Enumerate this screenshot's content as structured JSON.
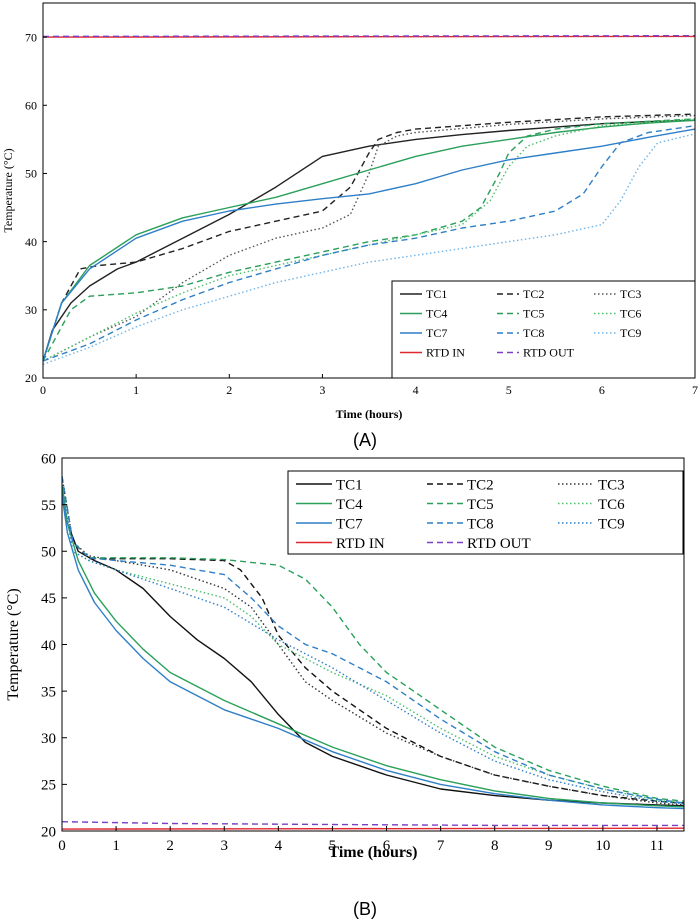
{
  "chart_data": [
    {
      "type": "line",
      "panel_label": "(A)",
      "xlabel": "Time (hours)",
      "ylabel": "Temperature (°C)",
      "xlim": [
        0,
        7
      ],
      "ylim": [
        20,
        75
      ],
      "xticks": [
        "0",
        "1",
        "2",
        "3",
        "4",
        "5",
        "6",
        "7"
      ],
      "yticks": [
        "20",
        "30",
        "40",
        "50",
        "60",
        "70"
      ],
      "xtick_values": [
        0,
        1,
        2,
        3,
        4,
        5,
        6,
        7
      ],
      "ytick_values": [
        20,
        30,
        40,
        50,
        60,
        70
      ],
      "legend_position": "bottom-right",
      "series": [
        {
          "name": "TC1",
          "color": "#222222",
          "dash": "solid",
          "x": [
            0,
            0.1,
            0.3,
            0.5,
            0.8,
            1.0,
            1.5,
            2.0,
            2.5,
            3.0,
            3.5,
            4.0,
            4.5,
            5.0,
            5.5,
            6.0,
            6.5,
            7.0
          ],
          "y": [
            22.5,
            27,
            31,
            33.5,
            36,
            37,
            40.5,
            44,
            48,
            52.5,
            54,
            55,
            55.7,
            56.3,
            56.8,
            57.3,
            57.6,
            57.8
          ]
        },
        {
          "name": "TC2",
          "color": "#222222",
          "dash": "dash",
          "x": [
            0,
            0.2,
            0.4,
            0.6,
            1.0,
            1.5,
            2.0,
            2.5,
            3.0,
            3.3,
            3.5,
            3.6,
            3.8,
            4.0,
            5.0,
            6.0,
            7.0
          ],
          "y": [
            22.5,
            31,
            36,
            36.5,
            37,
            39,
            41.5,
            43,
            44.5,
            48,
            53,
            55,
            56,
            56.5,
            57.5,
            58.3,
            58.7
          ]
        },
        {
          "name": "TC3",
          "color": "#555555",
          "dash": "dot",
          "x": [
            0,
            0.5,
            1.0,
            1.5,
            2.0,
            2.5,
            3.0,
            3.3,
            3.5,
            3.6,
            3.8,
            4.0,
            5.0,
            6.0,
            7.0
          ],
          "y": [
            22.5,
            26,
            29,
            34,
            38,
            40.5,
            42,
            44,
            50,
            54,
            55.5,
            56,
            57.2,
            58,
            58.5
          ]
        },
        {
          "name": "TC4",
          "color": "#2aa05a",
          "dash": "solid",
          "x": [
            0,
            0.2,
            0.5,
            1.0,
            1.5,
            2.0,
            2.5,
            3.0,
            3.5,
            4.0,
            4.5,
            5.0,
            5.5,
            6.0,
            6.5,
            7.0
          ],
          "y": [
            22.5,
            31,
            36.5,
            41,
            43.5,
            45,
            46.5,
            48.5,
            50.5,
            52.5,
            54,
            55,
            56,
            56.8,
            57.4,
            57.8
          ]
        },
        {
          "name": "TC5",
          "color": "#2aa05a",
          "dash": "dash",
          "x": [
            0,
            0.3,
            0.5,
            1.0,
            1.5,
            2.0,
            2.5,
            3.0,
            3.5,
            4.0,
            4.5,
            4.7,
            4.9,
            5.0,
            5.2,
            5.5,
            6.0,
            7.0
          ],
          "y": [
            22.5,
            30,
            32,
            32.5,
            33.5,
            35.5,
            37,
            38.5,
            40,
            41,
            43,
            45,
            50,
            53,
            55.5,
            56.5,
            57.3,
            58
          ]
        },
        {
          "name": "TC6",
          "color": "#4cbf6a",
          "dash": "dot",
          "x": [
            0,
            0.5,
            1.0,
            1.5,
            2.0,
            2.5,
            3.0,
            3.5,
            4.0,
            4.5,
            4.8,
            5.0,
            5.2,
            5.5,
            6.0,
            7.0
          ],
          "y": [
            22.5,
            26,
            29.5,
            32.5,
            35,
            36.5,
            38,
            39.5,
            41,
            42.5,
            46,
            51,
            54,
            55.5,
            57,
            58
          ]
        },
        {
          "name": "TC7",
          "color": "#2f7fc8",
          "dash": "solid",
          "x": [
            0,
            0.2,
            0.5,
            1.0,
            1.5,
            2.0,
            2.5,
            3.0,
            3.5,
            4.0,
            4.5,
            5.0,
            5.5,
            6.0,
            6.5,
            7.0
          ],
          "y": [
            22.5,
            31,
            36,
            40.5,
            43,
            44.5,
            45.5,
            46.3,
            47,
            48.5,
            50.5,
            52,
            53,
            54,
            55.3,
            56.5
          ]
        },
        {
          "name": "TC8",
          "color": "#2f7fc8",
          "dash": "dash",
          "x": [
            0,
            0.5,
            1.0,
            1.5,
            2.0,
            2.5,
            3.0,
            3.5,
            4.0,
            4.5,
            5.0,
            5.5,
            5.8,
            6.0,
            6.2,
            6.5,
            7.0
          ],
          "y": [
            22.5,
            25,
            28.5,
            31.5,
            34,
            36,
            38,
            39.5,
            40.5,
            42,
            43,
            44.5,
            47,
            51,
            54.5,
            56,
            57
          ]
        },
        {
          "name": "TC9",
          "color": "#6fb4e6",
          "dash": "dot",
          "x": [
            0,
            0.5,
            1.0,
            1.5,
            2.0,
            2.5,
            3.0,
            3.5,
            4.0,
            4.5,
            5.0,
            5.5,
            6.0,
            6.2,
            6.4,
            6.6,
            7.0
          ],
          "y": [
            22,
            24.5,
            27.5,
            30,
            32,
            34,
            35.5,
            37,
            38,
            39,
            40,
            41,
            42.5,
            46,
            51,
            54.5,
            55.8
          ]
        },
        {
          "name": "RTD IN",
          "color": "#e0262f",
          "dash": "solid",
          "x": [
            0,
            7
          ],
          "y": [
            70,
            70.1
          ]
        },
        {
          "name": "RTD OUT",
          "color": "#7b3fc4",
          "dash": "dash",
          "x": [
            0,
            7
          ],
          "y": [
            70.1,
            70.2
          ]
        }
      ]
    },
    {
      "type": "line",
      "panel_label": "(B)",
      "xlabel": "Time (hours)",
      "ylabel": "Temperature (°C)",
      "xlim": [
        0,
        11.5
      ],
      "ylim": [
        20,
        60
      ],
      "xticks": [
        "0",
        "1",
        "2",
        "3",
        "4",
        "5",
        "6",
        "7",
        "8",
        "9",
        "10",
        "11"
      ],
      "yticks": [
        "20",
        "25",
        "30",
        "35",
        "40",
        "45",
        "50",
        "55",
        "60"
      ],
      "xtick_values": [
        0,
        1,
        2,
        3,
        4,
        5,
        6,
        7,
        8,
        9,
        10,
        11
      ],
      "ytick_values": [
        20,
        25,
        30,
        35,
        40,
        45,
        50,
        55,
        60
      ],
      "legend_position": "top-right",
      "series": [
        {
          "name": "TC1",
          "color": "#111111",
          "dash": "solid",
          "x": [
            0,
            0.1,
            0.3,
            0.6,
            1.0,
            1.5,
            2.0,
            2.5,
            3.0,
            3.5,
            4.0,
            4.5,
            5.0,
            6.0,
            7.0,
            8.0,
            9.0,
            10.0,
            11.0,
            11.5
          ],
          "y": [
            57,
            53,
            50,
            49,
            48,
            46,
            43,
            40.5,
            38.5,
            36,
            32.5,
            29.5,
            28,
            26,
            24.5,
            23.8,
            23.3,
            23,
            22.8,
            22.7
          ]
        },
        {
          "name": "TC2",
          "color": "#111111",
          "dash": "dash",
          "x": [
            0,
            0.2,
            0.5,
            1.0,
            2.0,
            3.0,
            3.3,
            3.7,
            4.0,
            4.5,
            5.0,
            6.0,
            7.0,
            8.0,
            9.0,
            10.0,
            11.0,
            11.5
          ],
          "y": [
            58,
            51,
            49.2,
            49.2,
            49.2,
            49,
            48,
            45,
            41,
            37.5,
            35,
            31,
            28,
            26,
            24.8,
            23.8,
            23.2,
            23
          ]
        },
        {
          "name": "TC3",
          "color": "#333333",
          "dash": "dot",
          "x": [
            0,
            0.2,
            0.5,
            1.0,
            2.0,
            3.0,
            3.5,
            4.0,
            4.5,
            5.0,
            6.0,
            7.0,
            8.0,
            9.0,
            10.0,
            11.0,
            11.5
          ],
          "y": [
            58,
            51,
            49.5,
            49,
            48,
            46,
            44,
            40,
            36,
            34,
            30.5,
            28,
            26,
            24.8,
            23.8,
            23,
            22.8
          ]
        },
        {
          "name": "TC4",
          "color": "#2aa05a",
          "dash": "solid",
          "x": [
            0,
            0.1,
            0.3,
            0.6,
            1.0,
            1.5,
            2.0,
            2.5,
            3.0,
            4.0,
            5.0,
            6.0,
            7.0,
            8.0,
            9.0,
            10.0,
            11.0,
            11.5
          ],
          "y": [
            57,
            53,
            49,
            45.5,
            42.5,
            39.5,
            37,
            35.5,
            34,
            31.5,
            29,
            27,
            25.5,
            24.3,
            23.5,
            23,
            22.7,
            22.6
          ]
        },
        {
          "name": "TC5",
          "color": "#2aa05a",
          "dash": "dash",
          "x": [
            0,
            0.2,
            0.5,
            1.0,
            2.0,
            3.0,
            4.0,
            4.5,
            5.0,
            5.5,
            6.0,
            6.5,
            7.0,
            8.0,
            9.0,
            10.0,
            11.0,
            11.5
          ],
          "y": [
            58,
            51,
            49.3,
            49.3,
            49.3,
            49.1,
            48.5,
            47,
            44,
            40,
            37,
            35,
            33,
            29,
            26.5,
            24.8,
            23.5,
            23.2
          ]
        },
        {
          "name": "TC6",
          "color": "#4cbf6a",
          "dash": "dot",
          "x": [
            0,
            0.2,
            0.5,
            1.0,
            2.0,
            3.0,
            3.5,
            4.0,
            5.0,
            6.0,
            7.0,
            8.0,
            9.0,
            10.0,
            11.0,
            11.5
          ],
          "y": [
            57,
            50,
            49,
            48,
            46.5,
            45,
            43,
            40,
            37,
            34.5,
            31,
            28,
            26,
            24.5,
            23.3,
            23
          ]
        },
        {
          "name": "TC7",
          "color": "#2f7fc8",
          "dash": "solid",
          "x": [
            0,
            0.1,
            0.3,
            0.6,
            1.0,
            1.5,
            2.0,
            2.5,
            3.0,
            4.0,
            5.0,
            6.0,
            7.0,
            8.0,
            9.0,
            10.0,
            11.0,
            11.5
          ],
          "y": [
            56,
            52,
            48,
            44.5,
            41.5,
            38.5,
            36,
            34.5,
            33,
            31,
            28.5,
            26.5,
            25,
            24,
            23.3,
            22.8,
            22.5,
            22.4
          ]
        },
        {
          "name": "TC8",
          "color": "#2f7fc8",
          "dash": "dash",
          "x": [
            0,
            0.2,
            0.5,
            1.0,
            2.0,
            3.0,
            3.5,
            4.0,
            4.5,
            5.0,
            6.0,
            7.0,
            8.0,
            9.0,
            10.0,
            11.0,
            11.5
          ],
          "y": [
            58,
            51,
            49.3,
            49,
            48.5,
            47.5,
            45,
            42,
            40,
            39,
            36,
            32,
            28.5,
            26,
            24.5,
            23.4,
            23
          ]
        },
        {
          "name": "TC9",
          "color": "#2f7fc8",
          "dash": "dot",
          "x": [
            0,
            0.2,
            0.5,
            1.0,
            2.0,
            3.0,
            4.0,
            5.0,
            6.0,
            7.0,
            8.0,
            9.0,
            10.0,
            11.0,
            11.5
          ],
          "y": [
            57,
            50,
            49,
            48,
            46,
            44,
            40.5,
            37.5,
            34,
            30.5,
            27.5,
            25.5,
            24.2,
            23.2,
            22.9
          ]
        },
        {
          "name": "RTD IN",
          "color": "#e0262f",
          "dash": "solid",
          "x": [
            0,
            11.5
          ],
          "y": [
            20.2,
            20.3
          ]
        },
        {
          "name": "RTD OUT",
          "color": "#7b3fc4",
          "dash": "dash",
          "x": [
            0,
            2,
            5,
            8,
            11.5
          ],
          "y": [
            21,
            20.8,
            20.7,
            20.6,
            20.6
          ]
        }
      ]
    }
  ]
}
